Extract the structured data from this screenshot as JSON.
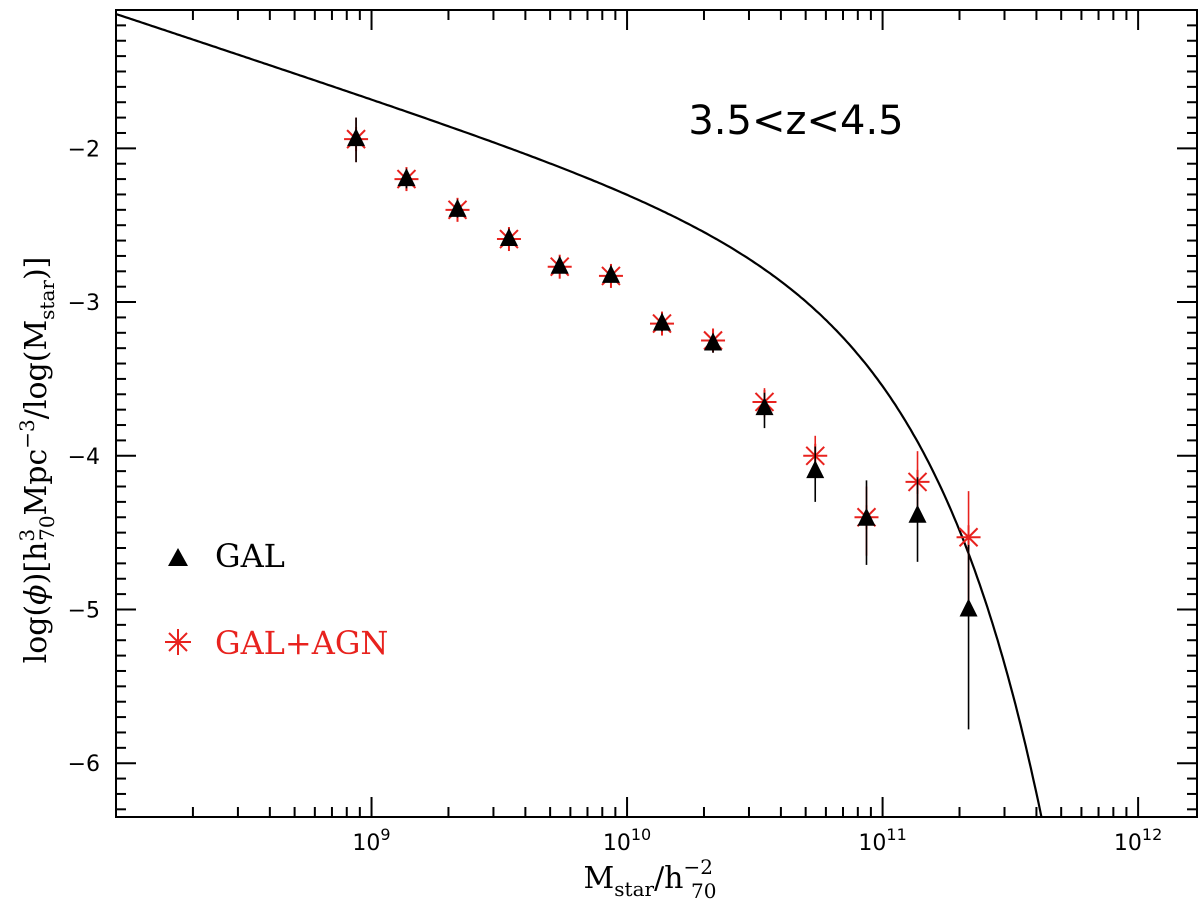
{
  "chart_data": {
    "type": "scatter",
    "annotation": "3.5<z<4.5",
    "xlabel": {
      "base": "M",
      "sub1": "star",
      "mid": "/h",
      "sup2": "−2",
      "sub2": "70"
    },
    "ylabel": {
      "pre": "log(",
      "phi": "ϕ",
      "mid": ")[h",
      "sup1": "3",
      "sub1": "70",
      "mpc": "Mpc",
      "sup2": "−3",
      "post": "/log(M",
      "sub2": "star",
      "end": ")]"
    },
    "x_scale": "log",
    "xlim": [
      100000000.0,
      1700000000000.0
    ],
    "ylim": [
      -6.35,
      -1.1
    ],
    "x_ticks": [
      {
        "value": 1000000000.0,
        "base": "10",
        "exp": "9"
      },
      {
        "value": 10000000000.0,
        "base": "10",
        "exp": "10"
      },
      {
        "value": 100000000000.0,
        "base": "10",
        "exp": "11"
      },
      {
        "value": 1000000000000.0,
        "base": "10",
        "exp": "12"
      }
    ],
    "y_ticks": [
      {
        "value": -2,
        "label": "−2"
      },
      {
        "value": -3,
        "label": "−3"
      },
      {
        "value": -4,
        "label": "−4"
      },
      {
        "value": -5,
        "label": "−5"
      },
      {
        "value": -6,
        "label": "−6"
      }
    ],
    "legend": [
      {
        "name": "GAL",
        "color": "#000000",
        "marker": "triangle"
      },
      {
        "name": "GAL+AGN",
        "color": "#e8221e",
        "marker": "asterisk"
      }
    ],
    "series": [
      {
        "name": "GAL",
        "color": "#000000",
        "marker": "triangle",
        "points": [
          {
            "x": 870000000.0,
            "y": -1.94,
            "err_lo": 0.15,
            "err_hi": 0.14
          },
          {
            "x": 1370000000.0,
            "y": -2.2,
            "err_lo": 0.06,
            "err_hi": 0.06
          },
          {
            "x": 2170000000.0,
            "y": -2.4,
            "err_lo": 0.05,
            "err_hi": 0.05
          },
          {
            "x": 3450000000.0,
            "y": -2.59,
            "err_lo": 0.04,
            "err_hi": 0.04
          },
          {
            "x": 5450000000.0,
            "y": -2.77,
            "err_lo": 0.04,
            "err_hi": 0.04
          },
          {
            "x": 8650000000.0,
            "y": -2.83,
            "err_lo": 0.04,
            "err_hi": 0.04
          },
          {
            "x": 13700000000.0,
            "y": -3.14,
            "err_lo": 0.05,
            "err_hi": 0.05
          },
          {
            "x": 21700000000.0,
            "y": -3.27,
            "err_lo": 0.06,
            "err_hi": 0.06
          },
          {
            "x": 34500000000.0,
            "y": -3.69,
            "err_lo": 0.13,
            "err_hi": 0.1
          },
          {
            "x": 54500000000.0,
            "y": -4.1,
            "err_lo": 0.2,
            "err_hi": 0.16
          },
          {
            "x": 86500000000.0,
            "y": -4.41,
            "err_lo": 0.3,
            "err_hi": 0.25
          },
          {
            "x": 137000000000.0,
            "y": -4.39,
            "err_lo": 0.3,
            "err_hi": 0.25
          },
          {
            "x": 217000000000.0,
            "y": -5.0,
            "err_lo": 0.78,
            "err_hi": 0.42
          }
        ]
      },
      {
        "name": "GAL+AGN",
        "color": "#e8221e",
        "marker": "asterisk",
        "points": [
          {
            "x": 870000000.0,
            "y": -1.94,
            "err_lo": 0.15,
            "err_hi": 0.14
          },
          {
            "x": 1370000000.0,
            "y": -2.2,
            "err_lo": 0.06,
            "err_hi": 0.06
          },
          {
            "x": 2170000000.0,
            "y": -2.4,
            "err_lo": 0.05,
            "err_hi": 0.05
          },
          {
            "x": 3450000000.0,
            "y": -2.59,
            "err_lo": 0.04,
            "err_hi": 0.04
          },
          {
            "x": 5450000000.0,
            "y": -2.77,
            "err_lo": 0.04,
            "err_hi": 0.04
          },
          {
            "x": 8650000000.0,
            "y": -2.83,
            "err_lo": 0.04,
            "err_hi": 0.04
          },
          {
            "x": 13700000000.0,
            "y": -3.14,
            "err_lo": 0.05,
            "err_hi": 0.05
          },
          {
            "x": 21700000000.0,
            "y": -3.25,
            "err_lo": 0.06,
            "err_hi": 0.06
          },
          {
            "x": 34500000000.0,
            "y": -3.65,
            "err_lo": 0.1,
            "err_hi": 0.09
          },
          {
            "x": 54500000000.0,
            "y": -4.0,
            "err_lo": 0.14,
            "err_hi": 0.13
          },
          {
            "x": 86500000000.0,
            "y": -4.4,
            "err_lo": 0.25,
            "err_hi": 0.2
          },
          {
            "x": 137000000000.0,
            "y": -4.17,
            "err_lo": 0.22,
            "err_hi": 0.2
          },
          {
            "x": 217000000000.0,
            "y": -4.53,
            "err_lo": 0.45,
            "err_hi": 0.3
          }
        ]
      }
    ],
    "model_curve": {
      "type": "schechter",
      "color": "#000000",
      "log_phi_star": -3.0,
      "log_m_star": 10.75,
      "alpha": -1.55
    }
  }
}
